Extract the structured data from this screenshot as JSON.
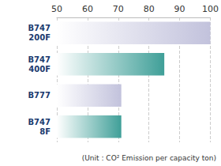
{
  "chart_data": {
    "type": "bar",
    "orientation": "horizontal",
    "categories": [
      "B747\n200F",
      "B747\n400F",
      "B777",
      "B747\n8F"
    ],
    "values": [
      100,
      85,
      71,
      71
    ],
    "colors": [
      "#c2c2dc",
      "#3f9f98",
      "#c2c2dc",
      "#3f9f98"
    ],
    "xlim": [
      50,
      100
    ],
    "xticks": [
      50,
      60,
      70,
      80,
      90,
      100
    ],
    "grid": true,
    "annotation": "(Unit : CO² Emission per capacity ton)"
  }
}
